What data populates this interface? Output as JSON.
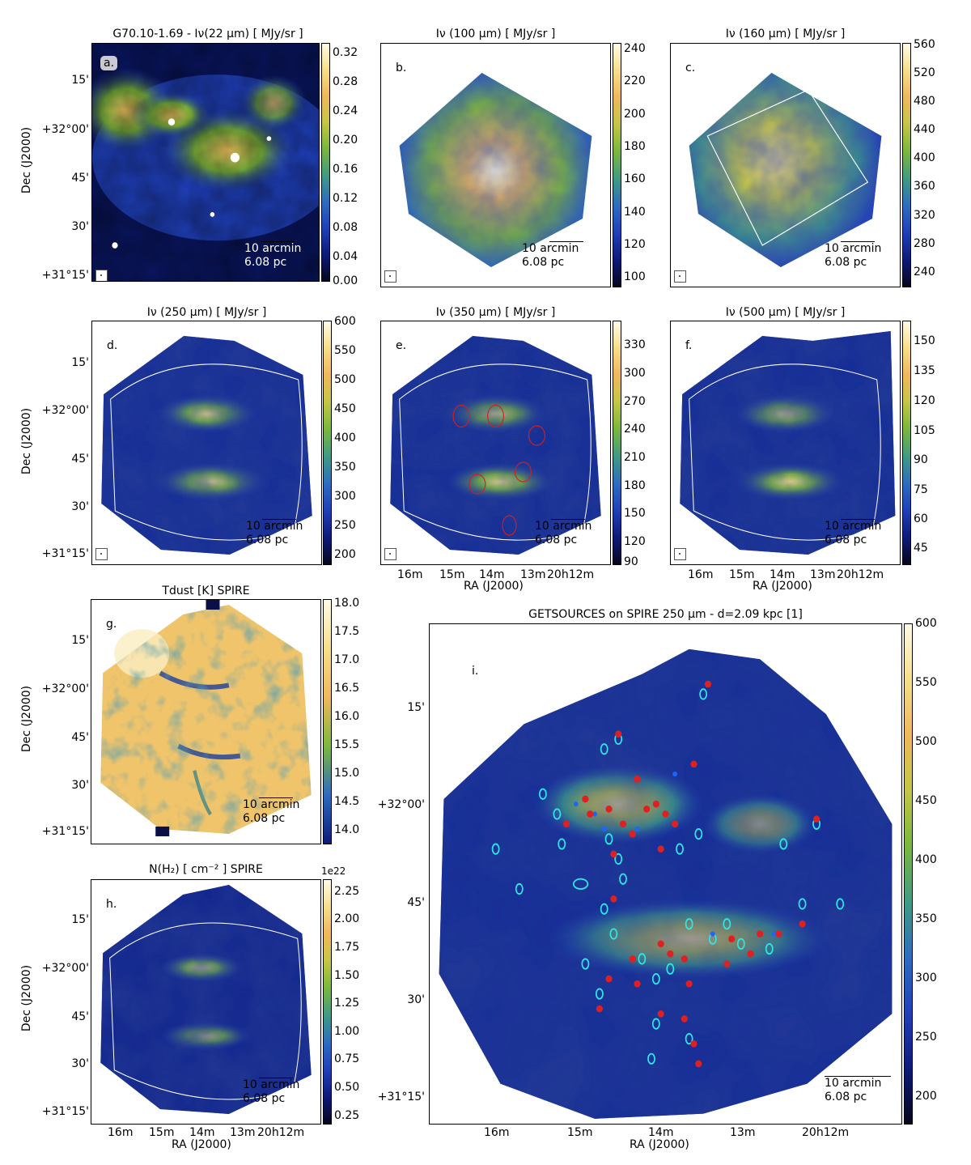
{
  "colormap": [
    "#06061c",
    "#0d1a78",
    "#1f3fb8",
    "#2c6cc0",
    "#3d9a86",
    "#7cb83c",
    "#c6c646",
    "#efb85c",
    "#f6df8a",
    "#fffbe6"
  ],
  "scalebar": {
    "length_label": "10 arcmin",
    "distance_label": "6.08 pc"
  },
  "axis_labels": {
    "dec": "Dec (J2000)",
    "ra": "RA (J2000)"
  },
  "dec_ticks": [
    "15'",
    "+32°00'",
    "45'",
    "30'",
    "+31°15'"
  ],
  "ra_ticks": [
    "16m",
    "15m",
    "14m",
    "13m",
    "20h12m"
  ],
  "panels": {
    "a": {
      "title": "G70.10-1.69 - Iν(22 μm)  [ MJy/sr ]",
      "letter": "a.",
      "colorbar_ticks": [
        "0.32",
        "0.28",
        "0.24",
        "0.20",
        "0.16",
        "0.12",
        "0.08",
        "0.04",
        "0.00"
      ]
    },
    "b": {
      "title": "Iν (100 μm) [ MJy/sr ]",
      "letter": "b.",
      "colorbar_ticks": [
        "240",
        "220",
        "200",
        "180",
        "160",
        "140",
        "120",
        "100"
      ]
    },
    "c": {
      "title": "Iν (160 μm) [ MJy/sr ]",
      "letter": "c.",
      "colorbar_ticks": [
        "560",
        "520",
        "480",
        "440",
        "400",
        "360",
        "320",
        "280",
        "240"
      ]
    },
    "d": {
      "title": "Iν (250 μm) [ MJy/sr ]",
      "letter": "d.",
      "colorbar_ticks": [
        "600",
        "550",
        "500",
        "450",
        "400",
        "350",
        "300",
        "250",
        "200"
      ]
    },
    "e": {
      "title": "Iν (350 μm) [ MJy/sr ]",
      "letter": "e.",
      "colorbar_ticks": [
        "330",
        "300",
        "270",
        "240",
        "210",
        "180",
        "150",
        "120",
        "90"
      ]
    },
    "f": {
      "title": "Iν (500 μm) [ MJy/sr ]",
      "letter": "f.",
      "colorbar_ticks": [
        "150",
        "135",
        "120",
        "105",
        "90",
        "75",
        "60",
        "45"
      ]
    },
    "g": {
      "title": "Tdust [K] SPIRE",
      "letter": "g.",
      "colorbar_ticks": [
        "18.0",
        "17.5",
        "17.0",
        "16.5",
        "16.0",
        "15.5",
        "15.0",
        "14.5",
        "14.0"
      ]
    },
    "h": {
      "title": "N(H₂) [ cm⁻² ] SPIRE",
      "letter": "h.",
      "colorbar_exponent": "1e22",
      "colorbar_ticks": [
        "2.25",
        "2.00",
        "1.75",
        "1.50",
        "1.25",
        "1.00",
        "0.75",
        "0.50",
        "0.25"
      ]
    },
    "i": {
      "title": "GETSOURCES on SPIRE 250 μm  -  d=2.09 kpc [1]",
      "letter": "i.",
      "colorbar_ticks": [
        "600",
        "550",
        "500",
        "450",
        "400",
        "350",
        "300",
        "250",
        "200"
      ]
    }
  }
}
